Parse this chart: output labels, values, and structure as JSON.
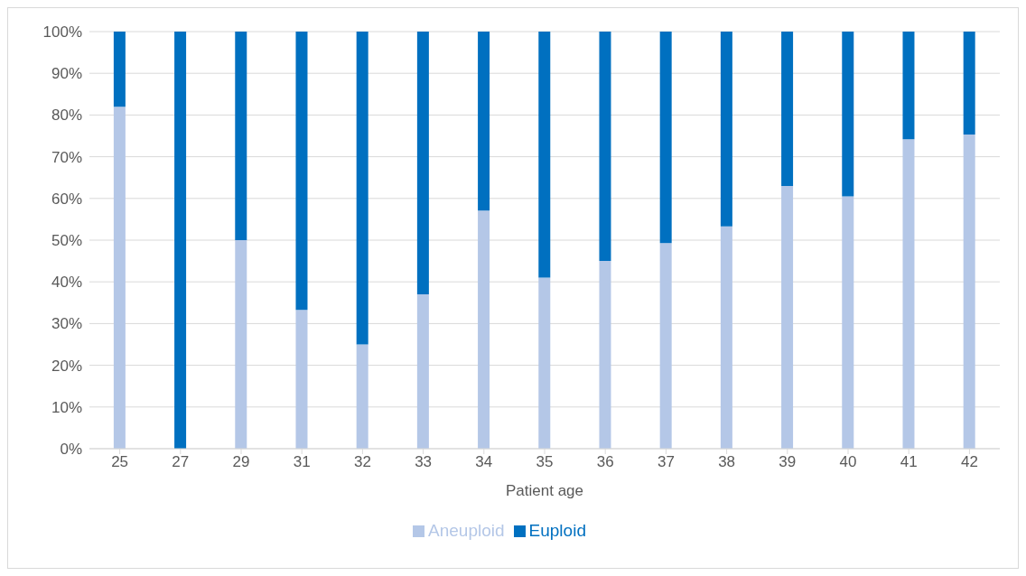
{
  "chart_data": {
    "type": "bar",
    "stacked": true,
    "xlabel": "Patient age",
    "categories": [
      "25",
      "27",
      "29",
      "31",
      "32",
      "33",
      "34",
      "35",
      "36",
      "37",
      "38",
      "39",
      "40",
      "41",
      "42"
    ],
    "series": [
      {
        "name": "Aneuploid",
        "color": "#b4c7e7",
        "values": [
          82,
          0,
          50,
          33.3,
          25,
          37,
          57.1,
          41,
          45,
          49.3,
          53.3,
          63,
          60.5,
          74.2,
          75.3
        ]
      },
      {
        "name": "Euploid",
        "color": "#0070c0",
        "values": [
          18,
          100,
          50,
          66.7,
          75,
          63,
          42.9,
          59,
          55,
          50.7,
          46.7,
          37,
          39.5,
          25.8,
          24.7
        ]
      }
    ],
    "ylim": [
      0,
      100
    ],
    "yticks": [
      {
        "value": 0,
        "label": "0%"
      },
      {
        "value": 10,
        "label": "10%"
      },
      {
        "value": 20,
        "label": "20%"
      },
      {
        "value": 30,
        "label": "30%"
      },
      {
        "value": 40,
        "label": "40%"
      },
      {
        "value": 50,
        "label": "50%"
      },
      {
        "value": 60,
        "label": "60%"
      },
      {
        "value": 70,
        "label": "70%"
      },
      {
        "value": 80,
        "label": "80%"
      },
      {
        "value": 90,
        "label": "90%"
      },
      {
        "value": 100,
        "label": "100%"
      }
    ],
    "grid": "y",
    "legend": "bottom"
  }
}
